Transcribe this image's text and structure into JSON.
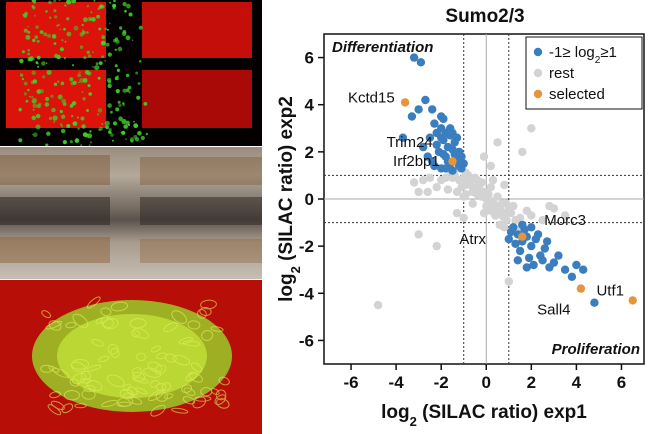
{
  "chart_data": {
    "type": "scatter",
    "title": "Sumo2/3",
    "xlabel_prefix": "log",
    "xlabel_sub": "2",
    "xlabel_suffix": " (SILAC ratio) exp1",
    "ylabel_prefix": "log",
    "ylabel_sub": "2",
    "ylabel_suffix": " (SILAC ratio) exp2",
    "xlim": [
      -7.2,
      7.0
    ],
    "ylim": [
      -7.0,
      7.0
    ],
    "x_ticks": [
      -6,
      -4,
      -2,
      0,
      2,
      4,
      6
    ],
    "y_ticks": [
      6,
      4,
      2,
      0,
      -2,
      -4,
      -6
    ],
    "threshold_lines": [
      -1,
      1
    ],
    "grid": false,
    "legend_position": "top-right",
    "legend": [
      {
        "label_prefix": "-1≥ log",
        "label_sub": "2",
        "label_suffix": "≥1",
        "color": "#3a7ebf"
      },
      {
        "label_prefix": "rest",
        "label_sub": "",
        "label_suffix": "",
        "color": "#d3d3d3"
      },
      {
        "label_prefix": "selected",
        "label_sub": "",
        "label_suffix": "",
        "color": "#e8943a"
      }
    ],
    "region_labels": {
      "top_left": "Differentiation",
      "bottom_right": "Proliferation"
    },
    "series": [
      {
        "name": "rest",
        "color": "#d3d3d3",
        "points": [
          [
            -1.0,
            0.9
          ],
          [
            -0.8,
            0.7
          ],
          [
            -0.6,
            0.5
          ],
          [
            -0.5,
            0.4
          ],
          [
            -0.3,
            0.3
          ],
          [
            -0.2,
            0.1
          ],
          [
            0.0,
            0.0
          ],
          [
            0.1,
            -0.1
          ],
          [
            0.2,
            -0.2
          ],
          [
            0.3,
            -0.3
          ],
          [
            0.4,
            -0.4
          ],
          [
            0.5,
            -0.5
          ],
          [
            0.6,
            -0.6
          ],
          [
            0.7,
            -0.7
          ],
          [
            0.8,
            -0.8
          ],
          [
            0.9,
            -0.9
          ],
          [
            -0.9,
            0.6
          ],
          [
            -0.7,
            0.8
          ],
          [
            -0.4,
            0.2
          ],
          [
            -0.1,
            0.3
          ],
          [
            0.1,
            0.2
          ],
          [
            0.3,
            -0.1
          ],
          [
            0.5,
            -0.3
          ],
          [
            0.2,
            -0.5
          ],
          [
            0.6,
            -0.4
          ],
          [
            0.8,
            -0.6
          ],
          [
            -0.6,
            0.3
          ],
          [
            -0.3,
            0.6
          ],
          [
            0.0,
            -0.3
          ],
          [
            0.4,
            -0.7
          ],
          [
            -1.2,
            0.8
          ],
          [
            -1.4,
            1.0
          ],
          [
            -1.5,
            0.9
          ],
          [
            -1.8,
            0.9
          ],
          [
            -2.0,
            0.8
          ],
          [
            -1.1,
            0.5
          ],
          [
            -0.9,
            0.2
          ],
          [
            1.1,
            -0.6
          ],
          [
            1.3,
            -0.9
          ],
          [
            1.5,
            -0.8
          ],
          [
            1.2,
            -0.3
          ],
          [
            0.9,
            -0.2
          ],
          [
            -0.5,
            0.9
          ],
          [
            -0.2,
            0.7
          ],
          [
            0.2,
            0.5
          ],
          [
            0.5,
            0.1
          ],
          [
            0.7,
            -0.2
          ],
          [
            1.0,
            -0.4
          ],
          [
            -0.8,
            1.0
          ],
          [
            -0.4,
            0.8
          ],
          [
            -2.5,
            0.9
          ],
          [
            -2.8,
            0.8
          ],
          [
            -3.2,
            0.7
          ],
          [
            -3.0,
            0.3
          ],
          [
            -2.2,
            0.5
          ],
          [
            -1.7,
            0.4
          ],
          [
            -1.3,
            0.3
          ],
          [
            -1.0,
            0.1
          ],
          [
            2.0,
            -0.7
          ],
          [
            2.5,
            -0.9
          ],
          [
            -4.8,
            -4.5
          ],
          [
            -3.0,
            -1.5
          ],
          [
            -2.2,
            -2.0
          ],
          [
            2.0,
            3.0
          ],
          [
            1.6,
            2.0
          ],
          [
            0.2,
            1.4
          ],
          [
            -0.1,
            1.8
          ],
          [
            0.5,
            2.4
          ],
          [
            -1.3,
            -0.6
          ],
          [
            1.0,
            -3.5
          ],
          [
            3.0,
            -0.4
          ],
          [
            3.5,
            -0.7
          ],
          [
            2.8,
            -0.3
          ],
          [
            -1.0,
            -0.8
          ],
          [
            0.8,
            0.6
          ],
          [
            1.8,
            -0.5
          ],
          [
            -2.6,
            0.3
          ],
          [
            -0.6,
            -0.2
          ],
          [
            0.3,
            0.8
          ],
          [
            -0.1,
            -0.6
          ],
          [
            -1.6,
            1.2
          ],
          [
            -1.2,
            1.3
          ],
          [
            -0.9,
            1.1
          ],
          [
            0.6,
            -1.1
          ],
          [
            1.2,
            -1.2
          ],
          [
            1.4,
            -1.3
          ],
          [
            1.6,
            -1.1
          ],
          [
            0.8,
            -1.2
          ],
          [
            -1.4,
            1.5
          ],
          [
            -1.1,
            1.6
          ]
        ]
      },
      {
        "name": "-1≥ log2≥1",
        "color": "#3a7ebf",
        "points": [
          [
            -2.9,
            5.8
          ],
          [
            -2.0,
            3.5
          ],
          [
            -2.3,
            3.2
          ],
          [
            -2.0,
            3.0
          ],
          [
            -1.8,
            2.8
          ],
          [
            -1.6,
            2.7
          ],
          [
            -1.9,
            2.5
          ],
          [
            -2.2,
            2.3
          ],
          [
            -1.7,
            2.2
          ],
          [
            -1.5,
            2.1
          ],
          [
            -2.1,
            2.0
          ],
          [
            -1.4,
            1.9
          ],
          [
            -1.8,
            1.8
          ],
          [
            -1.3,
            1.7
          ],
          [
            -2.4,
            1.6
          ],
          [
            -1.6,
            1.5
          ],
          [
            -1.2,
            1.4
          ],
          [
            -2.0,
            1.3
          ],
          [
            -1.5,
            1.2
          ],
          [
            -1.1,
            1.3
          ],
          [
            -2.6,
            1.8
          ],
          [
            -2.8,
            2.2
          ],
          [
            -1.7,
            1.6
          ],
          [
            -1.9,
            1.9
          ],
          [
            -1.4,
            2.4
          ],
          [
            -1.2,
            2.0
          ],
          [
            -2.2,
            2.8
          ],
          [
            -1.6,
            3.0
          ],
          [
            -1.0,
            1.5
          ],
          [
            -2.5,
            2.6
          ],
          [
            -3.0,
            3.8
          ],
          [
            -3.3,
            3.5
          ],
          [
            -2.7,
            4.2
          ],
          [
            -3.7,
            2.6
          ],
          [
            -1.3,
            2.6
          ],
          [
            -1.8,
            1.3
          ],
          [
            -2.3,
            1.4
          ],
          [
            -1.1,
            1.8
          ],
          [
            -2.0,
            2.6
          ],
          [
            -1.5,
            2.8
          ],
          [
            -3.2,
            6.0
          ],
          [
            -2.4,
            3.8
          ],
          [
            -1.9,
            3.4
          ],
          [
            1.2,
            -1.2
          ],
          [
            1.4,
            -1.5
          ],
          [
            1.6,
            -1.8
          ],
          [
            1.8,
            -1.6
          ],
          [
            2.0,
            -2.0
          ],
          [
            2.2,
            -1.7
          ],
          [
            1.5,
            -2.2
          ],
          [
            2.4,
            -2.4
          ],
          [
            2.6,
            -2.1
          ],
          [
            1.3,
            -1.9
          ],
          [
            1.9,
            -2.5
          ],
          [
            2.1,
            -2.8
          ],
          [
            1.1,
            -1.4
          ],
          [
            1.7,
            -1.3
          ],
          [
            2.5,
            -2.6
          ],
          [
            2.8,
            -2.9
          ],
          [
            3.0,
            -2.7
          ],
          [
            1.4,
            -2.6
          ],
          [
            2.3,
            -1.5
          ],
          [
            1.0,
            -1.7
          ],
          [
            3.5,
            -3.0
          ],
          [
            3.8,
            -3.3
          ],
          [
            4.0,
            -2.8
          ],
          [
            4.3,
            -3.0
          ],
          [
            3.2,
            -2.4
          ],
          [
            2.7,
            -1.8
          ],
          [
            1.6,
            -1.1
          ],
          [
            2.0,
            -1.2
          ],
          [
            4.8,
            -4.4
          ],
          [
            1.8,
            -2.9
          ]
        ]
      },
      {
        "name": "selected",
        "color": "#e8943a",
        "points": [
          [
            -3.6,
            4.1
          ],
          [
            -1.5,
            1.6
          ],
          [
            1.6,
            -1.6
          ],
          [
            4.2,
            -3.8
          ],
          [
            6.5,
            -4.3
          ]
        ]
      }
    ],
    "annotations": [
      {
        "text": "Kctd15",
        "x": -5.1,
        "y": 4.1,
        "anchor": "middle"
      },
      {
        "text": "Trim24",
        "x": -3.4,
        "y": 2.2,
        "anchor": "middle"
      },
      {
        "text": "Irf2bp1",
        "x": -3.1,
        "y": 1.4,
        "anchor": "middle"
      },
      {
        "text": "Morc3",
        "x": 3.5,
        "y": -1.1,
        "anchor": "middle"
      },
      {
        "text": "Atrx",
        "x": -0.6,
        "y": -1.9,
        "anchor": "middle"
      },
      {
        "text": "Sall4",
        "x": 3.0,
        "y": -4.9,
        "anchor": "middle"
      },
      {
        "text": "Utf1",
        "x": 5.5,
        "y": -4.1,
        "anchor": "middle"
      }
    ]
  }
}
